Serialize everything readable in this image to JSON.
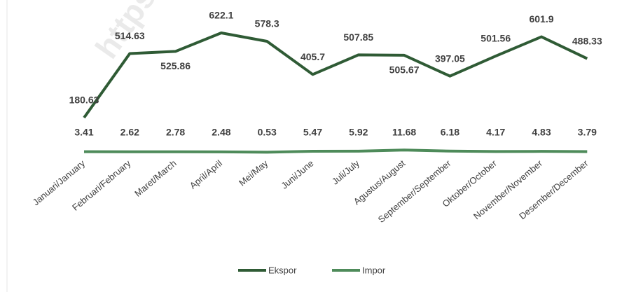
{
  "chart_data": {
    "type": "line",
    "watermark": "https://k",
    "categories": [
      "Januari/January",
      "Februari/February",
      "Maret/March",
      "April/April",
      "Mei/May",
      "Juni/June",
      "Juli/July",
      "Agustus/August",
      "September/September",
      "Oktober/October",
      "November/November",
      "Desember/December"
    ],
    "series": [
      {
        "name": "Ekspor",
        "color": "#2f5b35",
        "values": [
          180.63,
          514.63,
          525.86,
          622.1,
          578.3,
          405.7,
          507.85,
          505.67,
          397.05,
          501.56,
          601.9,
          488.33
        ]
      },
      {
        "name": "Impor",
        "color": "#4e8b5a",
        "values": [
          3.41,
          2.62,
          2.78,
          2.48,
          0.53,
          5.47,
          5.92,
          11.68,
          6.18,
          4.17,
          4.83,
          3.79
        ]
      }
    ],
    "legend": "bottom"
  }
}
